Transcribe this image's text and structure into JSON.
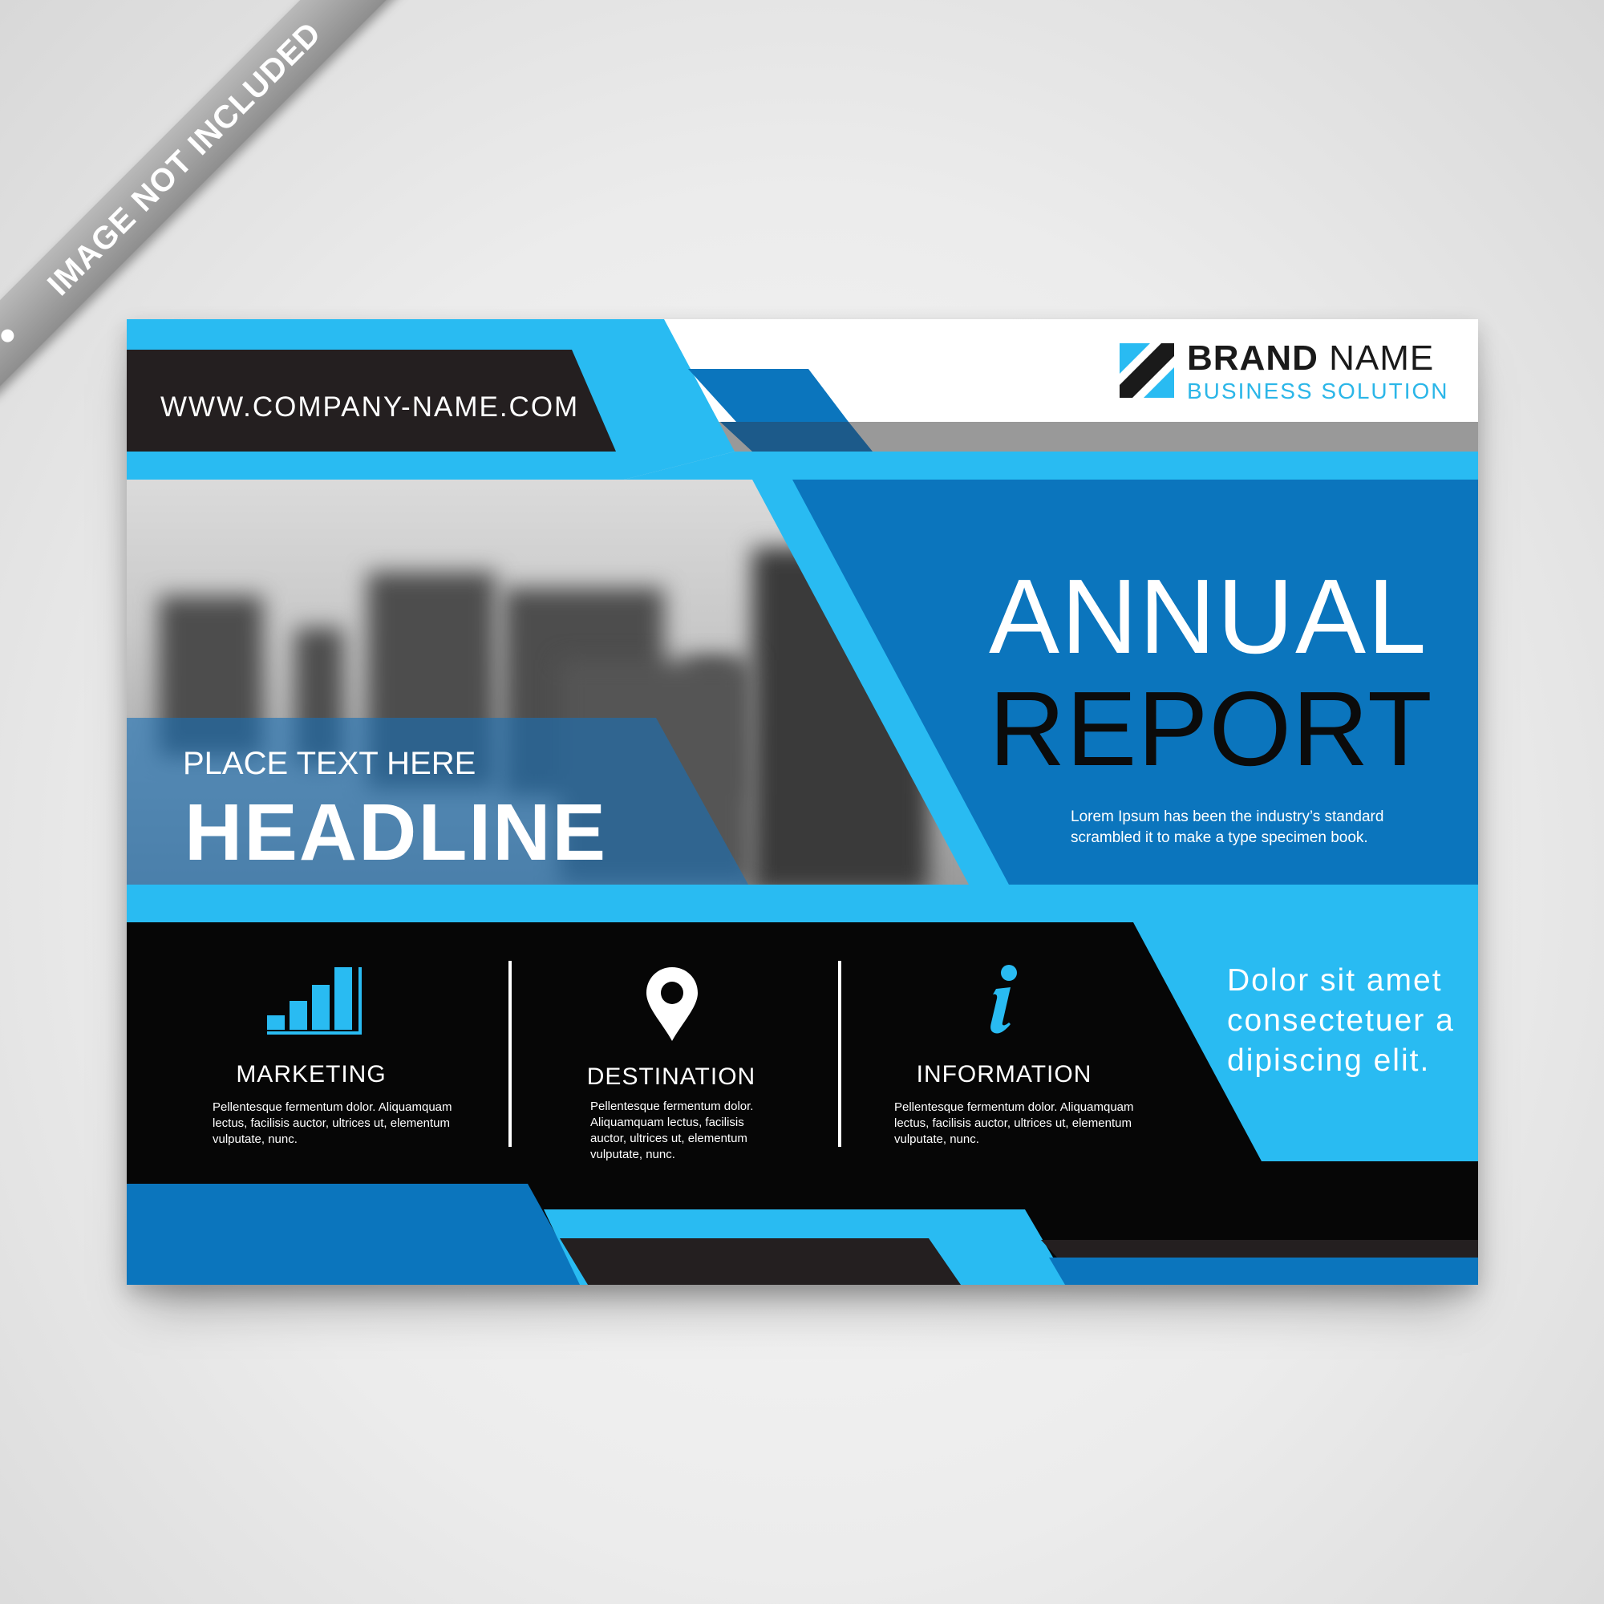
{
  "ribbon": {
    "text": "IMAGE NOT INCLUDED"
  },
  "header": {
    "website": "WWW.COMPANY-NAME.COM",
    "brand_name_bold": "BRAND",
    "brand_name_light": "NAME",
    "brand_tagline": "BUSINESS SOLUTION"
  },
  "hero": {
    "title_line1": "ANNUAL",
    "title_line2": "REPORT",
    "description_line1": "Lorem Ipsum has been the industry’s standard",
    "description_line2": "scrambled it to make a type specimen book."
  },
  "photo_overlay": {
    "subtitle": "PLACE TEXT HERE",
    "headline": "HEADLINE"
  },
  "features": [
    {
      "icon": "bar-chart-icon",
      "title": "MARKETING",
      "description": [
        "Pellentesque fermentum dolor. Aliquamquam",
        "lectus, facilisis auctor, ultrices ut, elementum",
        "vulputate, nunc."
      ]
    },
    {
      "icon": "location-pin-icon",
      "title": "DESTINATION",
      "description": [
        "Pellentesque fermentum dolor.",
        "Aliquamquam lectus, facilisis",
        "auctor, ultrices ut, elementum",
        "vulputate, nunc."
      ]
    },
    {
      "icon": "info-icon",
      "title": "INFORMATION",
      "description": [
        "Pellentesque fermentum dolor. Aliquamquam",
        "lectus, facilisis auctor, ultrices ut, elementum",
        "vulputate, nunc."
      ]
    }
  ],
  "side_note": [
    "Dolor sit amet",
    "consectetuer a",
    "dipiscing elit."
  ],
  "colors": {
    "light_blue": "#29bbf2",
    "mid_blue": "#0b75bd",
    "dark": "#060606",
    "gray": "#999999"
  }
}
